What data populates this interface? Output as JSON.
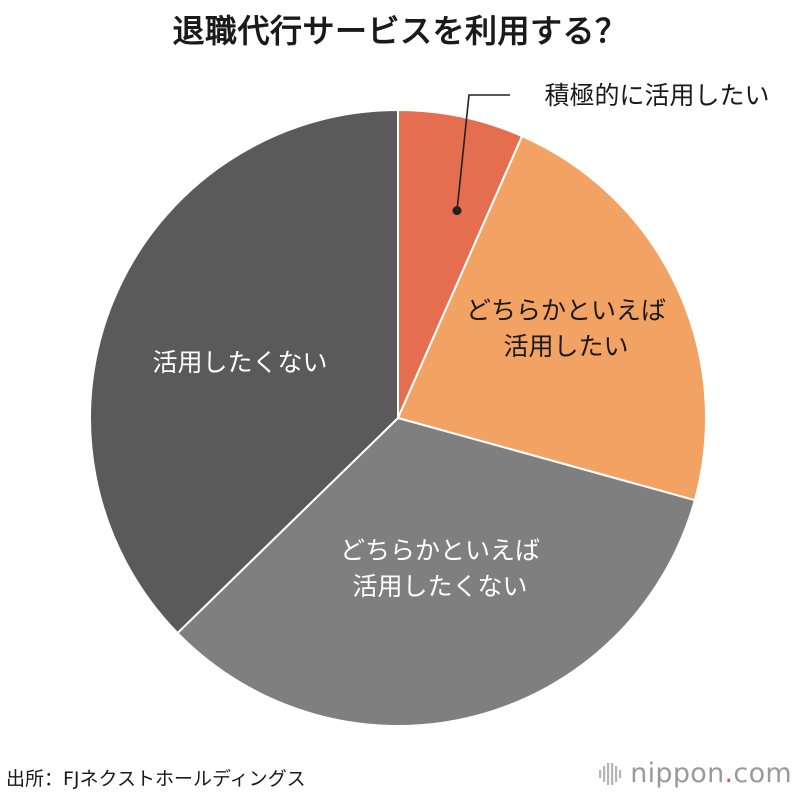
{
  "title": "退職代行サービスを利用する？",
  "chart_data": {
    "type": "pie",
    "title": "退職代行サービスを利用する？",
    "start": "top, clockwise",
    "slices": [
      {
        "label": "積極的に活用したい",
        "value": 6.6,
        "color": "#e46e4f",
        "label_color": "#1a1a1a",
        "label_placement": "outside-callout"
      },
      {
        "label": "どちらかといえば\n活用したい",
        "value": 22.7,
        "color": "#f2a262",
        "label_color": "#1a1a1a",
        "label_placement": "inside"
      },
      {
        "label": "どちらかといえば\n活用したくない",
        "value": 33.4,
        "color": "#7f7f7f",
        "label_color": "#ffffff",
        "label_placement": "inside"
      },
      {
        "label": "活用したくない",
        "value": 37.3,
        "color": "#5a5a5a",
        "label_color": "#ffffff",
        "label_placement": "inside"
      }
    ]
  },
  "footer": {
    "source": "出所：FJネクストホールディングス",
    "brand_name": "nippon",
    "brand_dot": ".",
    "brand_suffix": "com"
  }
}
